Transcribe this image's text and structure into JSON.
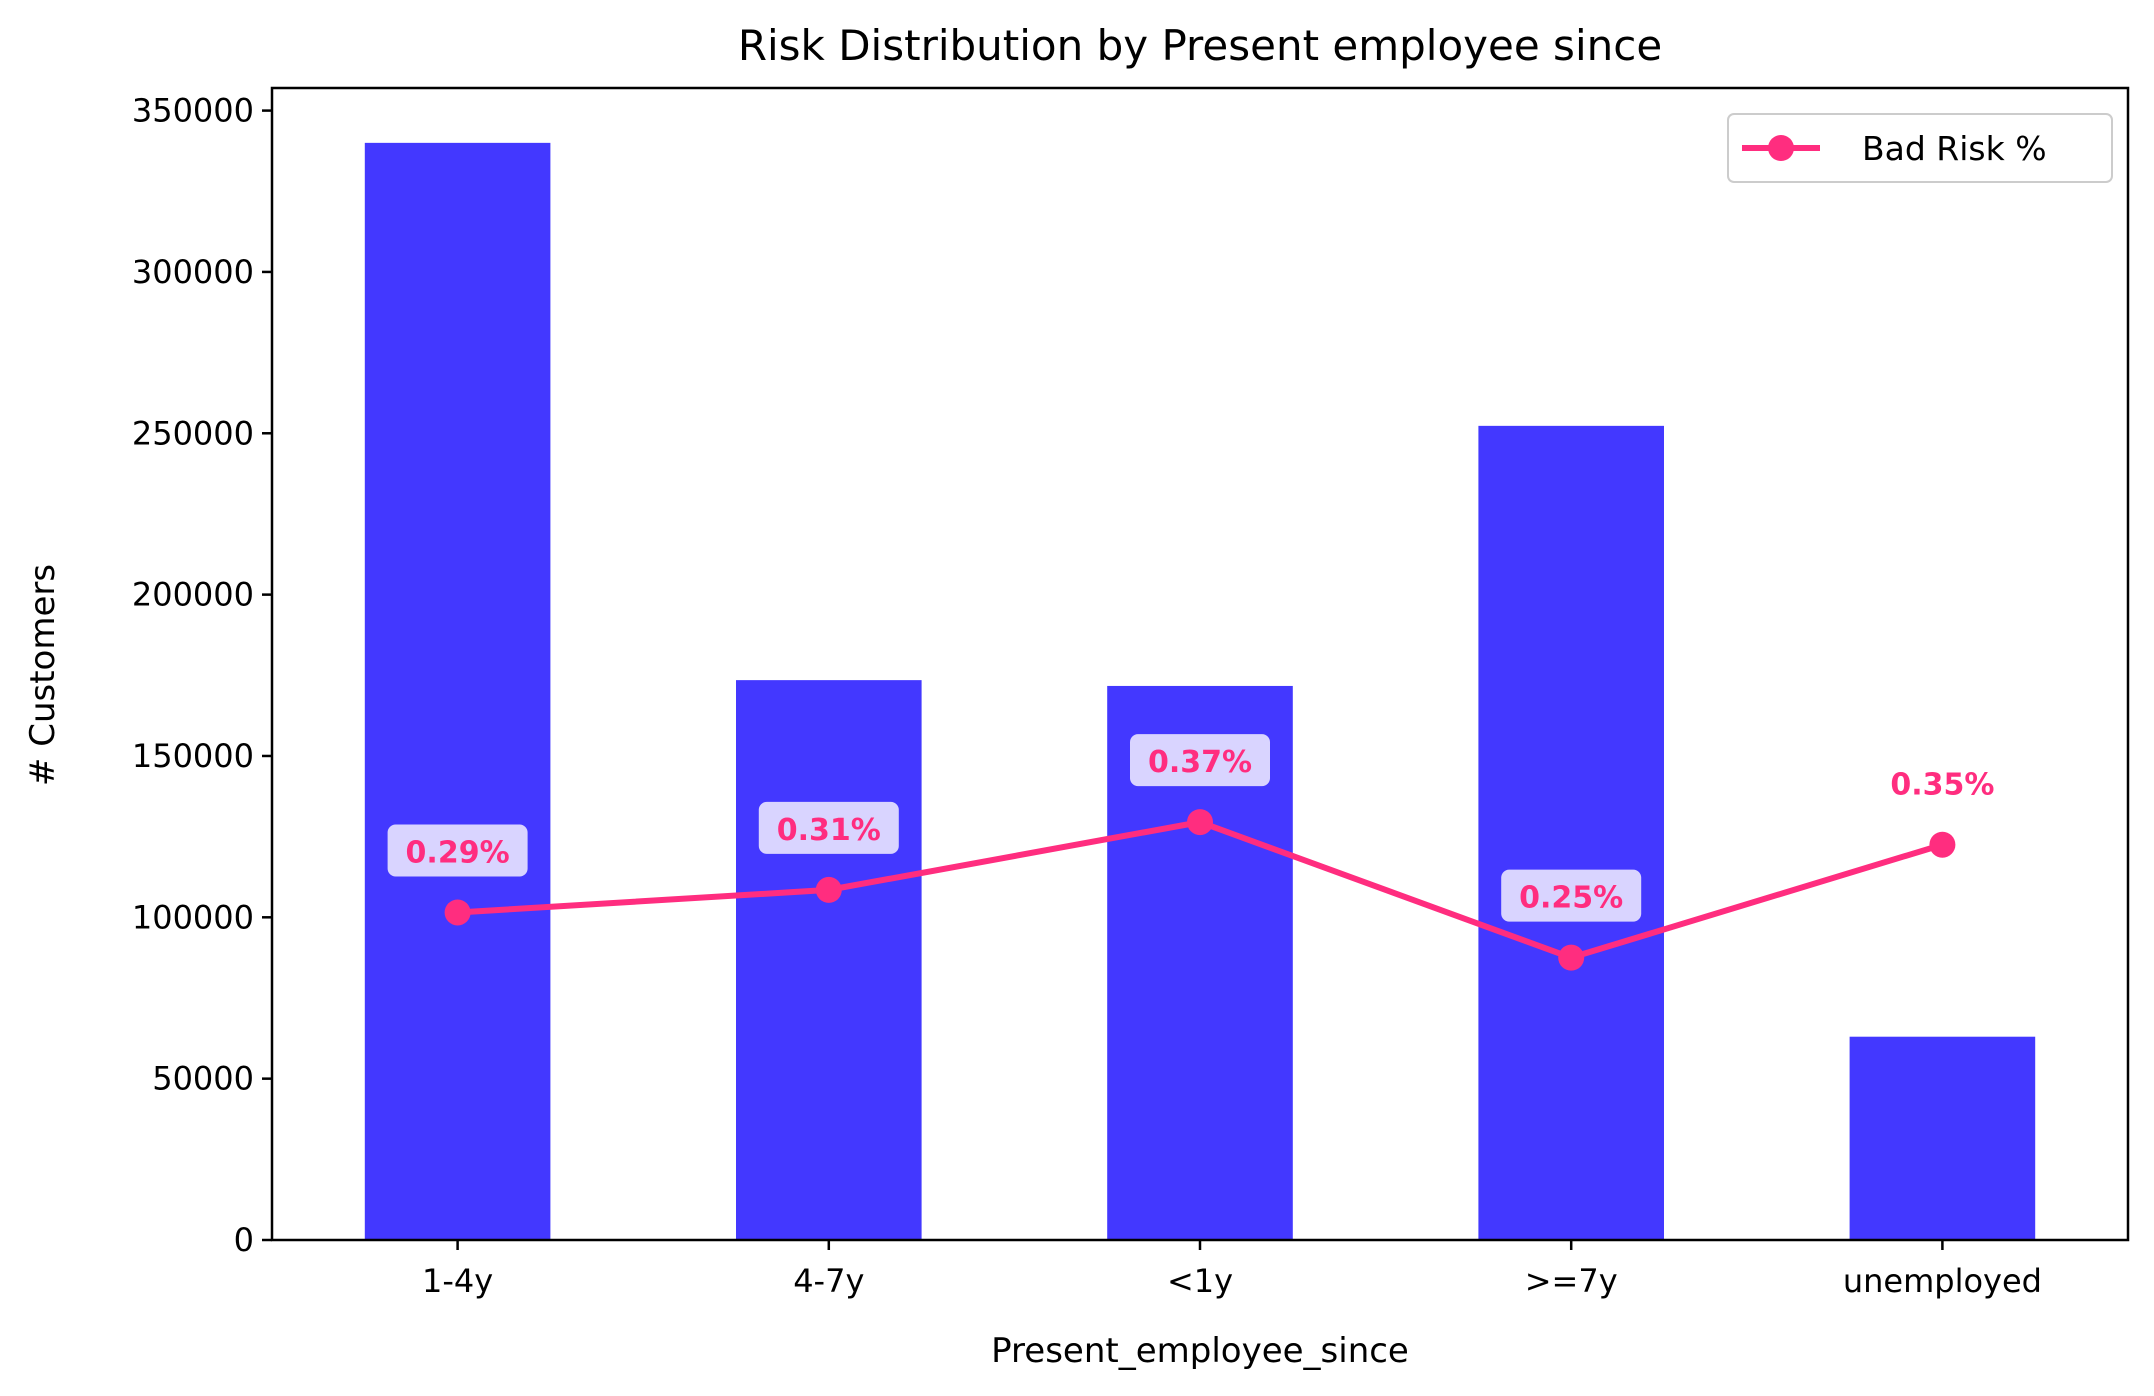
{
  "chart_data": {
    "type": "bar",
    "title": "Risk Distribution by Present employee since",
    "xlabel": "Present_employee_since",
    "ylabel": "# Customers",
    "categories": [
      "1-4y",
      "4-7y",
      "<1y",
      ">=7y",
      "unemployed"
    ],
    "series": [
      {
        "values": [
          340000,
          173500,
          171700,
          252300,
          63000
        ]
      },
      {
        "name": "Bad Risk %",
        "type": "line",
        "values": [
          0.29,
          0.31,
          0.37,
          0.25,
          0.35
        ],
        "labels": [
          "0.29%",
          "0.31%",
          "0.37%",
          "0.25%",
          "0.35%"
        ]
      }
    ],
    "ylim": [
      0,
      357000
    ],
    "yticks": [
      0,
      50000,
      100000,
      150000,
      200000,
      250000,
      300000,
      350000
    ],
    "ytick_labels": [
      "0",
      "50000",
      "100000",
      "150000",
      "200000",
      "250000",
      "300000",
      "350000"
    ],
    "grid": false,
    "legend": {
      "position": "top-right",
      "entries": [
        "Bad Risk %"
      ]
    },
    "colors": {
      "bars": "#4338ff",
      "line": "#ff2d7f",
      "label_box": "#e6e2ff"
    }
  }
}
